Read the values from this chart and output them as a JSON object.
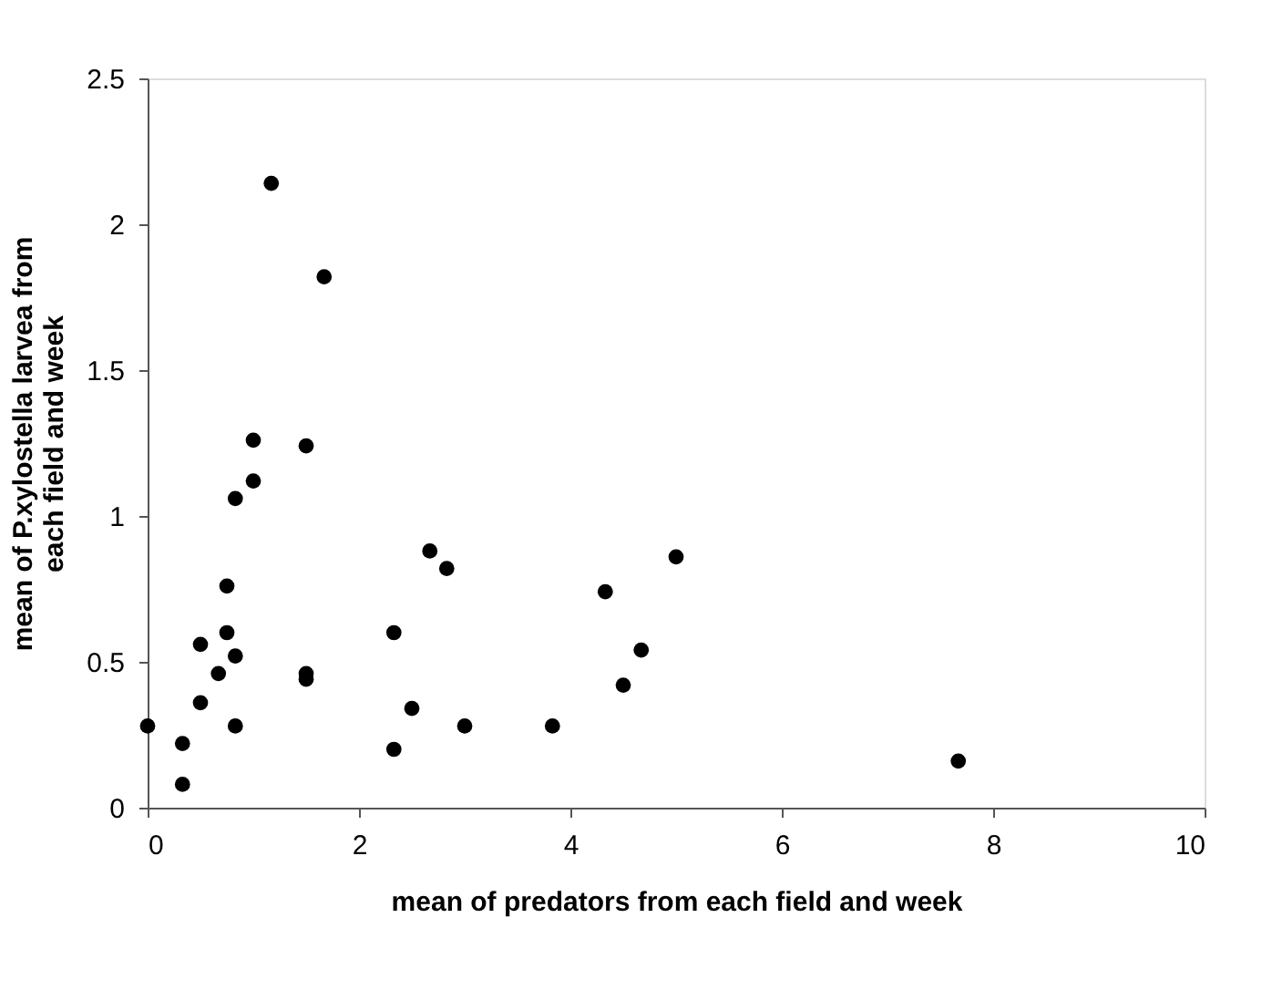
{
  "chart_data": {
    "type": "scatter",
    "xlabel": "mean of predators from each field and week",
    "ylabel": "mean of P.xylostella larvea from each field and week",
    "x": [
      0,
      0.33,
      0.33,
      0.5,
      0.5,
      0.67,
      0.75,
      0.75,
      0.83,
      0.83,
      0.83,
      1,
      1,
      1.17,
      1.5,
      1.5,
      1.5,
      1.67,
      2.33,
      2.33,
      2.5,
      2.67,
      2.83,
      3,
      3.83,
      4.33,
      4.5,
      4.67,
      5,
      7.67
    ],
    "series": [
      {
        "color": "#000000",
        "values": [
          0.28,
          0.22,
          0.08,
          0.56,
          0.36,
          0.46,
          0.76,
          0.6,
          0.52,
          0.28,
          1.06,
          1.12,
          1.26,
          2.14,
          1.24,
          0.46,
          0.44,
          1.82,
          0.6,
          0.2,
          0.34,
          0.88,
          0.82,
          0.28,
          0.28,
          0.74,
          0.42,
          0.54,
          0.86,
          0.16
        ]
      }
    ],
    "xlim": [
      0,
      10
    ],
    "xticks": [
      0,
      2,
      4,
      6,
      8,
      10
    ],
    "ylim": [
      0,
      2.5
    ],
    "yticks": [
      0,
      0.5,
      1,
      1.5,
      2,
      2.5
    ],
    "grid": false,
    "legend": false,
    "marker": "circle"
  }
}
